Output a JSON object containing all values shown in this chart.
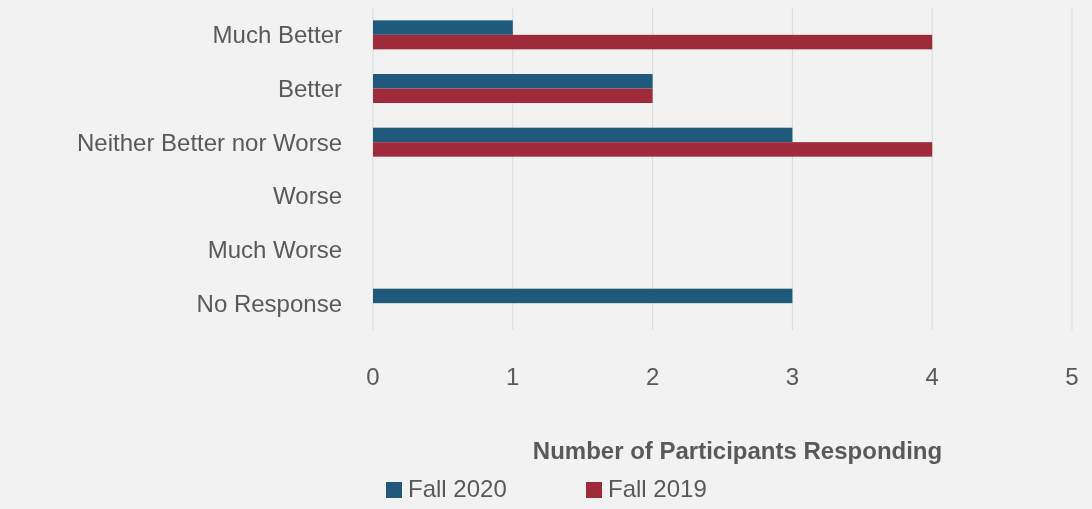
{
  "chart_data": {
    "type": "bar",
    "orientation": "horizontal",
    "xlabel": "Number of Participants Responding",
    "categories": [
      "Much Better",
      "Better",
      "Neither Better nor Worse",
      "Worse",
      "Much Worse",
      "No Response"
    ],
    "series": [
      {
        "name": "Fall 2020",
        "color": "#1f5a7d",
        "values": [
          1,
          2,
          3,
          0,
          0,
          3
        ]
      },
      {
        "name": "Fall 2019",
        "color": "#9e2a3a",
        "values": [
          4,
          2,
          4,
          0,
          0,
          0
        ]
      }
    ],
    "xlim": [
      0,
      5
    ],
    "xticks": [
      0,
      1,
      2,
      3,
      4,
      5
    ],
    "grid": "x",
    "legend": "bottom"
  }
}
